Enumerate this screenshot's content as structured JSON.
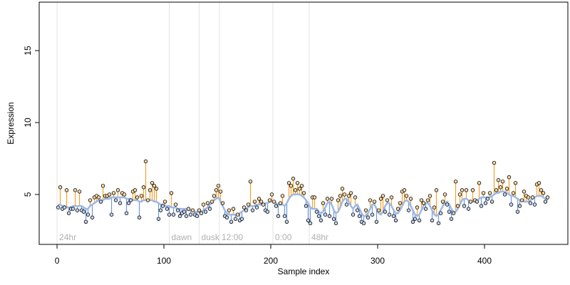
{
  "chart_data": {
    "type": "lollipop-trend",
    "x_label": "Sample index",
    "y_label": "Expression",
    "xlim": [
      -16.7,
      478
    ],
    "ylim": [
      1.53,
      18.37
    ],
    "xticks": [
      0,
      100,
      200,
      300,
      400
    ],
    "yticks": [
      5,
      10,
      15
    ],
    "above_color": "#f2a230",
    "below_color": "#7098d8",
    "trend_color": "#9db8e6",
    "point_color": "#000000",
    "annotations": [
      {
        "x": 0,
        "label": "24hr"
      },
      {
        "x": 105,
        "label": "dawn"
      },
      {
        "x": 133,
        "label": "dusk"
      },
      {
        "x": 152,
        "label": "12:00"
      },
      {
        "x": 202,
        "label": "0:00"
      },
      {
        "x": 236,
        "label": "48hr"
      }
    ],
    "x": [
      1,
      3,
      5,
      7,
      9,
      11,
      13,
      15,
      17,
      19,
      21,
      23,
      25,
      27,
      29,
      31,
      33,
      35,
      37,
      39,
      41,
      43,
      45,
      47,
      49,
      51,
      53,
      55,
      57,
      59,
      61,
      63,
      65,
      67,
      69,
      71,
      73,
      75,
      77,
      79,
      81,
      83,
      85,
      87,
      89,
      91,
      93,
      95,
      97,
      99,
      101,
      103,
      105,
      107,
      109,
      111,
      113,
      115,
      117,
      119,
      121,
      123,
      125,
      127,
      129,
      131,
      133,
      135,
      137,
      139,
      141,
      143,
      145,
      147,
      149,
      151,
      153,
      155,
      157,
      159,
      161,
      163,
      165,
      167,
      169,
      171,
      173,
      175,
      177,
      179,
      181,
      183,
      185,
      187,
      189,
      191,
      193,
      195,
      197,
      199,
      201,
      203,
      205,
      207,
      209,
      211,
      213,
      215,
      217,
      219,
      221,
      223,
      225,
      227,
      229,
      231,
      233,
      235,
      237,
      239,
      241,
      243,
      245,
      247,
      249,
      251,
      253,
      255,
      257,
      259,
      261,
      263,
      265,
      267,
      269,
      271,
      273,
      275,
      277,
      279,
      281,
      283,
      285,
      287,
      289,
      291,
      293,
      295,
      297,
      299,
      301,
      303,
      305,
      307,
      309,
      311,
      313,
      315,
      317,
      319,
      321,
      323,
      325,
      327,
      329,
      331,
      333,
      335,
      337,
      339,
      341,
      343,
      345,
      347,
      349,
      351,
      353,
      355,
      357,
      359,
      361,
      363,
      365,
      367,
      369,
      371,
      373,
      375,
      377,
      379,
      381,
      383,
      385,
      387,
      389,
      391,
      393,
      395,
      397,
      399,
      401,
      403,
      405,
      407,
      409,
      411,
      413,
      415,
      417,
      419,
      421,
      423,
      425,
      427,
      429,
      431,
      433,
      435,
      437,
      439,
      441,
      443,
      445,
      447,
      449,
      451,
      453,
      455,
      457,
      459
    ],
    "values": [
      4.1,
      5.5,
      4.0,
      4.1,
      5.3,
      3.7,
      4.0,
      4.0,
      5.3,
      3.9,
      5.2,
      3.9,
      3.8,
      3.1,
      3.6,
      4.6,
      3.4,
      4.8,
      4.9,
      4.8,
      4.5,
      5.6,
      4.9,
      4.9,
      5.0,
      3.6,
      5.1,
      4.6,
      5.3,
      4.4,
      5.1,
      5.0,
      3.7,
      4.4,
      4.6,
      5.2,
      5.3,
      4.8,
      3.4,
      4.9,
      5.5,
      7.3,
      4.6,
      5.3,
      5.8,
      5.6,
      5.4,
      3.3,
      3.9,
      4.2,
      4.5,
      4.0,
      3.6,
      5.1,
      3.6,
      4.3,
      3.9,
      3.5,
      3.7,
      3.8,
      3.5,
      4.0,
      3.6,
      3.9,
      3.6,
      3.5,
      3.9,
      3.7,
      4.3,
      3.8,
      4.4,
      4.0,
      4.5,
      4.9,
      5.3,
      5.6,
      5.2,
      4.4,
      3.5,
      3.4,
      3.9,
      3.1,
      4.0,
      3.3,
      3.6,
      3.2,
      3.3,
      4.1,
      3.9,
      4.3,
      5.9,
      3.9,
      4.5,
      4.1,
      4.7,
      4.5,
      4.3,
      3.9,
      3.8,
      4.6,
      5.0,
      4.5,
      4.2,
      3.5,
      4.4,
      4.9,
      3.5,
      3.1,
      5.8,
      5.6,
      6.1,
      5.3,
      5.8,
      5.4,
      5.6,
      5.1,
      4.2,
      3.2,
      3.0,
      4.8,
      4.8,
      3.8,
      3.5,
      3.2,
      4.4,
      3.6,
      4.7,
      3.5,
      4.7,
      3.3,
      3.0,
      4.6,
      4.9,
      5.4,
      5.0,
      4.3,
      4.9,
      5.1,
      3.6,
      4.8,
      3.9,
      3.5,
      3.1,
      3.0,
      3.9,
      3.4,
      4.6,
      3.6,
      4.5,
      3.1,
      3.9,
      4.7,
      4.9,
      3.8,
      4.6,
      3.6,
      4.8,
      3.5,
      3.2,
      4.0,
      4.4,
      5.2,
      5.3,
      4.9,
      3.9,
      4.7,
      3.1,
      3.3,
      4.1,
      3.2,
      4.6,
      4.4,
      4.0,
      4.6,
      4.9,
      3.2,
      4.1,
      5.3,
      3.0,
      3.7,
      4.5,
      5.0,
      4.3,
      3.8,
      3.3,
      3.7,
      5.9,
      4.2,
      5.0,
      5.3,
      4.2,
      5.3,
      4.0,
      4.5,
      5.3,
      4.6,
      4.5,
      5.8,
      4.2,
      5.1,
      4.4,
      4.7,
      5.1,
      4.5,
      7.2,
      5.3,
      6.0,
      5.5,
      5.9,
      5.0,
      5.4,
      6.2,
      4.3,
      5.1,
      5.8,
      3.8,
      4.2,
      4.6,
      5.2,
      4.9,
      4.8,
      4.4,
      4.8,
      4.3,
      5.7,
      5.8,
      5.3,
      5.1,
      4.5,
      4.8
    ],
    "trend": [
      4.3,
      4.3,
      4.2,
      4.2,
      4.1,
      4.1,
      4.1,
      4.2,
      4.2,
      4.2,
      4.2,
      4.2,
      4.1,
      4.0,
      4.0,
      4.2,
      4.3,
      4.4,
      4.5,
      4.6,
      4.6,
      4.6,
      4.7,
      4.7,
      4.7,
      4.8,
      4.8,
      4.8,
      4.8,
      4.8,
      4.8,
      4.8,
      4.7,
      4.7,
      4.7,
      4.6,
      4.6,
      4.6,
      4.5,
      4.5,
      4.6,
      4.6,
      4.6,
      4.6,
      4.6,
      4.5,
      4.5,
      4.4,
      4.3,
      4.3,
      4.2,
      4.2,
      4.2,
      4.1,
      4.1,
      4.1,
      4.0,
      4.0,
      4.0,
      4.0,
      4.0,
      3.9,
      3.9,
      3.9,
      3.8,
      3.8,
      3.8,
      3.8,
      3.9,
      4.0,
      4.1,
      4.3,
      4.4,
      4.6,
      4.7,
      4.8,
      4.5,
      4.2,
      3.9,
      3.7,
      3.6,
      3.6,
      3.6,
      3.6,
      3.6,
      3.7,
      3.8,
      3.9,
      4.0,
      4.1,
      4.2,
      4.2,
      4.2,
      4.3,
      4.3,
      4.3,
      4.3,
      4.4,
      4.4,
      4.5,
      4.5,
      4.5,
      4.4,
      4.3,
      4.3,
      4.3,
      4.2,
      4.4,
      4.7,
      4.9,
      5.0,
      5.0,
      5.0,
      5.0,
      4.9,
      4.8,
      4.6,
      4.4,
      4.1,
      4.0,
      4.0,
      4.0,
      3.8,
      3.7,
      3.8,
      4.1,
      4.4,
      4.5,
      4.3,
      3.9,
      3.7,
      3.8,
      4.1,
      4.5,
      4.7,
      4.7,
      4.5,
      4.2,
      4.0,
      4.2,
      4.3,
      4.0,
      3.7,
      3.5,
      3.5,
      3.7,
      4.0,
      4.3,
      4.3,
      4.0,
      3.7,
      3.6,
      3.8,
      4.2,
      4.4,
      4.4,
      4.2,
      3.9,
      3.7,
      3.7,
      3.9,
      4.2,
      4.5,
      4.6,
      4.5,
      4.2,
      3.9,
      3.6,
      3.5,
      3.6,
      3.9,
      4.2,
      4.4,
      4.4,
      4.2,
      3.9,
      3.6,
      3.5,
      3.6,
      3.9,
      4.2,
      4.4,
      4.5,
      4.3,
      4.0,
      3.8,
      3.8,
      4.0,
      4.3,
      4.6,
      4.7,
      4.7,
      4.6,
      4.5,
      4.5,
      4.5,
      4.6,
      4.7,
      4.8,
      4.8,
      4.8,
      4.8,
      4.8,
      4.9,
      5.0,
      5.1,
      5.1,
      5.2,
      5.2,
      5.2,
      5.1,
      5.0,
      4.9,
      4.9,
      4.8,
      4.7,
      4.6,
      4.6,
      4.5,
      4.5,
      4.5,
      4.6,
      4.7,
      4.8,
      4.9,
      4.9,
      4.9,
      4.8,
      4.7,
      4.6
    ]
  }
}
